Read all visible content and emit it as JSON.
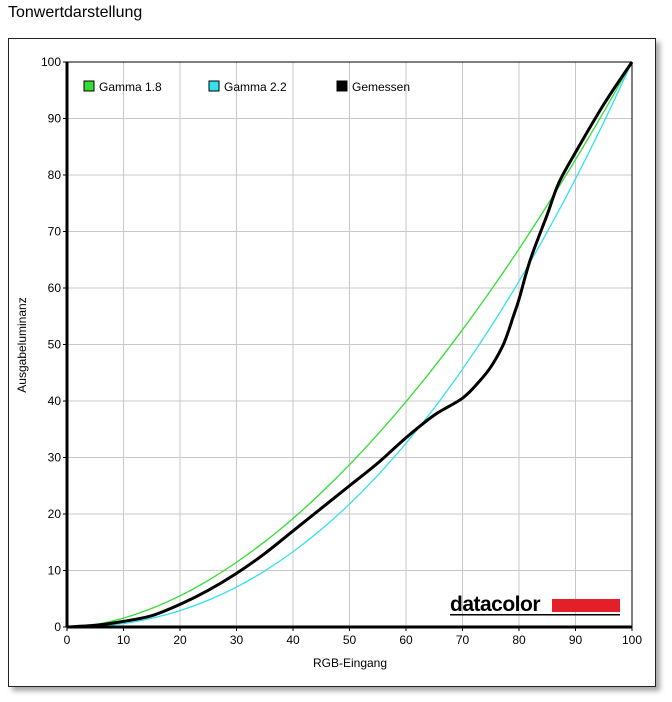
{
  "title": "Tonwertdarstellung",
  "chart_data": {
    "type": "line",
    "title": "Tonwertdarstellung",
    "xlabel": "RGB-Eingang",
    "ylabel": "Ausgabeluminanz",
    "xlim": [
      0,
      100
    ],
    "ylim": [
      0,
      100
    ],
    "xticks": [
      "0",
      "10",
      "20",
      "30",
      "40",
      "50",
      "60",
      "70",
      "80",
      "90",
      "100"
    ],
    "yticks": [
      "0",
      "10",
      "20",
      "30",
      "40",
      "50",
      "60",
      "70",
      "80",
      "90",
      "100"
    ],
    "grid": true,
    "legend_position": "top-left",
    "series": [
      {
        "name": "Gamma 1.8",
        "color": "#33dd33",
        "width": 1.3,
        "x": [
          0,
          5,
          10,
          15,
          20,
          25,
          30,
          35,
          40,
          45,
          50,
          55,
          60,
          65,
          70,
          75,
          80,
          85,
          90,
          95,
          100
        ],
        "y": [
          0,
          0.45,
          1.58,
          3.29,
          5.52,
          8.25,
          11.46,
          15.1,
          19.21,
          23.76,
          28.72,
          34.1,
          39.88,
          46.05,
          52.62,
          59.58,
          66.9,
          74.64,
          82.72,
          91.18,
          100
        ]
      },
      {
        "name": "Gamma 2.2",
        "color": "#33e0ee",
        "width": 1.3,
        "x": [
          0,
          5,
          10,
          15,
          20,
          25,
          30,
          35,
          40,
          45,
          50,
          55,
          60,
          65,
          70,
          75,
          80,
          85,
          90,
          95,
          100
        ],
        "y": [
          0,
          0.14,
          0.63,
          1.54,
          2.9,
          4.74,
          7.07,
          9.93,
          13.32,
          17.26,
          21.76,
          26.84,
          32.5,
          38.76,
          45.63,
          53.1,
          61.2,
          69.94,
          79.31,
          89.33,
          100
        ]
      },
      {
        "name": "Gemessen",
        "color": "#000000",
        "width": 3,
        "x": [
          0,
          5,
          10,
          15,
          20,
          25,
          30,
          35,
          40,
          45,
          50,
          55,
          60,
          65,
          70,
          73,
          75,
          77,
          78,
          79,
          80,
          82,
          85,
          87,
          90,
          95,
          100
        ],
        "y": [
          0,
          0.3,
          1,
          2,
          4,
          6.5,
          9.5,
          13,
          17,
          21,
          25,
          29,
          33.5,
          37.5,
          40.5,
          43.5,
          46,
          49.5,
          52,
          55,
          58,
          65,
          73,
          78.5,
          84,
          92.5,
          100
        ]
      }
    ]
  },
  "logo": {
    "text": "datacolor",
    "bar_color": "#e3202a"
  }
}
